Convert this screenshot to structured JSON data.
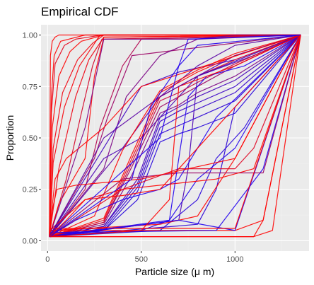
{
  "chart_data": {
    "type": "line",
    "title": "Empirical CDF",
    "xlabel": "Particle size (μ m)",
    "ylabel": "Proportion",
    "xlim": [
      -35,
      1395
    ],
    "ylim": [
      -0.05,
      1.05
    ],
    "x_ticks": [
      0,
      500,
      1000
    ],
    "y_ticks": [
      0.0,
      0.25,
      0.5,
      0.75,
      1.0
    ],
    "x_tick_labels": [
      "0",
      "500",
      "1000"
    ],
    "y_tick_labels": [
      "0.00",
      "0.25",
      "0.50",
      "0.75",
      "1.00"
    ],
    "grid": true,
    "legend": "none",
    "color_gradient": [
      "#2200cc",
      "#ff0000"
    ],
    "series": [
      {
        "color": "#ff0000",
        "x": [
          10,
          25,
          60,
          120,
          180,
          300,
          1350
        ],
        "y": [
          0.02,
          0.55,
          0.8,
          0.92,
          0.97,
          1.0,
          1.0
        ]
      },
      {
        "color": "#f2000d",
        "x": [
          10,
          30,
          80,
          160,
          240,
          300,
          1350
        ],
        "y": [
          0.02,
          0.45,
          0.72,
          0.88,
          0.96,
          1.0,
          1.0
        ]
      },
      {
        "color": "#e5001a",
        "x": [
          10,
          20,
          40,
          90,
          150,
          290,
          1350
        ],
        "y": [
          0.03,
          0.62,
          0.86,
          0.95,
          0.98,
          1.0,
          1.0
        ]
      },
      {
        "color": "#ee0011",
        "x": [
          10,
          60,
          150,
          220,
          300,
          1350
        ],
        "y": [
          0.02,
          0.35,
          0.7,
          0.88,
          0.99,
          1.0
        ]
      },
      {
        "color": "#d40026",
        "x": [
          10,
          100,
          180,
          240,
          290,
          1350
        ],
        "y": [
          0.02,
          0.3,
          0.62,
          0.85,
          0.98,
          1.0
        ]
      },
      {
        "color": "#ff0000",
        "x": [
          10,
          60,
          200,
          250,
          300,
          1350
        ],
        "y": [
          0.02,
          0.18,
          0.4,
          0.8,
          0.99,
          1.0
        ]
      },
      {
        "color": "#f70008",
        "x": [
          10,
          30,
          90,
          170,
          280,
          1350
        ],
        "y": [
          0.02,
          0.38,
          0.65,
          0.85,
          1.0,
          1.0
        ]
      },
      {
        "color": "#ff0000",
        "x": [
          10,
          20,
          35,
          70,
          200,
          1350
        ],
        "y": [
          0.02,
          0.7,
          0.9,
          0.97,
          1.0,
          1.0
        ]
      },
      {
        "color": "#b3004c",
        "x": [
          10,
          200,
          280,
          400,
          500,
          1350
        ],
        "y": [
          0.02,
          0.25,
          0.55,
          0.85,
          0.98,
          1.0
        ]
      },
      {
        "color": "#9b0064",
        "x": [
          10,
          250,
          320,
          450,
          1350
        ],
        "y": [
          0.02,
          0.4,
          0.6,
          0.9,
          1.0
        ]
      },
      {
        "color": "#7a0085",
        "x": [
          10,
          300,
          420,
          600,
          800,
          1350
        ],
        "y": [
          0.02,
          0.35,
          0.7,
          0.9,
          0.98,
          1.0
        ]
      },
      {
        "color": "#5a00a5",
        "x": [
          10,
          400,
          600,
          800,
          1000,
          1350
        ],
        "y": [
          0.02,
          0.45,
          0.7,
          0.85,
          0.95,
          1.0
        ]
      },
      {
        "color": "#3d00c2",
        "x": [
          10,
          500,
          700,
          1000,
          1350
        ],
        "y": [
          0.02,
          0.75,
          0.82,
          0.88,
          1.0
        ]
      },
      {
        "color": "#4a00b5",
        "x": [
          10,
          300,
          500,
          800,
          1100,
          1350
        ],
        "y": [
          0.02,
          0.4,
          0.5,
          0.8,
          0.9,
          1.0
        ]
      },
      {
        "color": "#2200dd",
        "x": [
          10,
          300,
          480,
          600,
          700,
          800,
          1000,
          1350
        ],
        "y": [
          0.02,
          0.05,
          0.2,
          0.48,
          0.52,
          0.55,
          0.62,
          1.0
        ]
      },
      {
        "color": "#2a00d5",
        "x": [
          10,
          300,
          480,
          600,
          700,
          800,
          1000,
          1350
        ],
        "y": [
          0.02,
          0.05,
          0.24,
          0.52,
          0.56,
          0.6,
          0.68,
          1.0
        ]
      },
      {
        "color": "#3300cc",
        "x": [
          10,
          300,
          480,
          600,
          700,
          800,
          1000,
          1350
        ],
        "y": [
          0.02,
          0.06,
          0.26,
          0.55,
          0.6,
          0.64,
          0.72,
          1.0
        ]
      },
      {
        "color": "#3800c7",
        "x": [
          10,
          300,
          480,
          600,
          700,
          800,
          1000,
          1350
        ],
        "y": [
          0.02,
          0.07,
          0.28,
          0.58,
          0.63,
          0.67,
          0.75,
          1.0
        ]
      },
      {
        "color": "#4400bb",
        "x": [
          10,
          300,
          480,
          600,
          700,
          800,
          1000,
          1350
        ],
        "y": [
          0.02,
          0.07,
          0.3,
          0.6,
          0.65,
          0.7,
          0.78,
          1.0
        ]
      },
      {
        "color": "#7a0085",
        "x": [
          10,
          300,
          450,
          600,
          700,
          800,
          1000,
          1350
        ],
        "y": [
          0.02,
          0.08,
          0.32,
          0.62,
          0.66,
          0.72,
          0.8,
          1.0
        ]
      },
      {
        "color": "#9e0061",
        "x": [
          10,
          300,
          450,
          600,
          700,
          800,
          1000,
          1350
        ],
        "y": [
          0.02,
          0.09,
          0.36,
          0.65,
          0.7,
          0.75,
          0.85,
          1.0
        ]
      },
      {
        "color": "#c7003a",
        "x": [
          10,
          300,
          450,
          600,
          700,
          800,
          1000,
          1350
        ],
        "y": [
          0.02,
          0.09,
          0.38,
          0.68,
          0.72,
          0.77,
          0.86,
          1.0
        ]
      },
      {
        "color": "#ea0017",
        "x": [
          10,
          300,
          450,
          600,
          700,
          800,
          1000,
          1350
        ],
        "y": [
          0.02,
          0.1,
          0.4,
          0.7,
          0.75,
          0.8,
          0.88,
          1.0
        ]
      },
      {
        "color": "#ff0000",
        "x": [
          10,
          300,
          450,
          600,
          700,
          800,
          1000,
          1350
        ],
        "y": [
          0.02,
          0.11,
          0.42,
          0.72,
          0.77,
          0.82,
          0.9,
          1.0
        ]
      },
      {
        "color": "#ff0000",
        "x": [
          10,
          250,
          400,
          600,
          700,
          800,
          1000,
          1350
        ],
        "y": [
          0.02,
          0.12,
          0.44,
          0.73,
          0.78,
          0.83,
          0.91,
          1.0
        ]
      },
      {
        "color": "#2200ee",
        "x": [
          10,
          500,
          650,
          800,
          1000,
          1350
        ],
        "y": [
          0.02,
          0.05,
          0.1,
          0.3,
          0.45,
          1.0
        ]
      },
      {
        "color": "#2600dd",
        "x": [
          10,
          600,
          800,
          900,
          1050,
          1350
        ],
        "y": [
          0.02,
          0.05,
          0.2,
          0.4,
          0.55,
          1.0
        ]
      },
      {
        "color": "#4a00b5",
        "x": [
          10,
          700,
          750,
          800,
          1350
        ],
        "y": [
          0.02,
          0.1,
          0.35,
          0.8,
          1.0
        ]
      },
      {
        "color": "#2a00d5",
        "x": [
          10,
          800,
          900,
          1000,
          1350
        ],
        "y": [
          0.02,
          0.08,
          0.25,
          0.65,
          1.0
        ]
      },
      {
        "color": "#ff0000",
        "x": [
          10,
          600,
          800,
          1000,
          1350
        ],
        "y": [
          0.05,
          0.08,
          0.12,
          0.4,
          1.0
        ]
      },
      {
        "color": "#e0001f",
        "x": [
          10,
          400,
          700,
          1000,
          1100,
          1350
        ],
        "y": [
          0.02,
          0.25,
          0.35,
          0.35,
          0.45,
          1.0
        ]
      },
      {
        "color": "#ff0000",
        "x": [
          10,
          1100,
          1150,
          1350
        ],
        "y": [
          0.02,
          0.02,
          0.1,
          1.0
        ]
      },
      {
        "color": "#ff0000",
        "x": [
          10,
          1000,
          1150,
          1350
        ],
        "y": [
          0.05,
          0.05,
          0.1,
          1.0
        ]
      },
      {
        "color": "#2200ee",
        "x": [
          10,
          900,
          1150,
          1350
        ],
        "y": [
          0.04,
          0.05,
          0.35,
          1.0
        ]
      },
      {
        "color": "#9b0064",
        "x": [
          10,
          400,
          700,
          1000,
          1150,
          1350
        ],
        "y": [
          0.02,
          0.3,
          0.33,
          0.33,
          0.33,
          1.0
        ]
      },
      {
        "color": "#ff0000",
        "x": [
          10,
          200,
          400,
          700,
          900,
          1100,
          1350
        ],
        "y": [
          0.05,
          0.2,
          0.25,
          0.28,
          0.3,
          0.35,
          1.0
        ]
      },
      {
        "color": "#2200ee",
        "x": [
          10,
          150,
          400,
          600,
          700,
          900,
          1350
        ],
        "y": [
          0.02,
          0.1,
          0.2,
          0.25,
          0.3,
          0.6,
          1.0
        ]
      },
      {
        "color": "#ff0000",
        "x": [
          10,
          1100,
          1200,
          1350
        ],
        "y": [
          0.02,
          0.02,
          0.05,
          1.0
        ]
      },
      {
        "color": "#2200ee",
        "x": [
          10,
          700,
          1000,
          1350
        ],
        "y": [
          0.02,
          0.1,
          0.05,
          1.0
        ]
      },
      {
        "color": "#ff0000",
        "x": [
          10,
          700,
          1000,
          1350
        ],
        "y": [
          0.06,
          0.06,
          0.06,
          1.0
        ]
      },
      {
        "color": "#2200ee",
        "x": [
          10,
          650,
          750,
          850,
          1050,
          1350
        ],
        "y": [
          0.02,
          0.1,
          0.7,
          0.8,
          0.85,
          1.0
        ]
      },
      {
        "color": "#ff0000",
        "x": [
          10,
          500,
          650,
          700,
          1000,
          1350
        ],
        "y": [
          0.02,
          0.05,
          0.2,
          0.75,
          0.85,
          1.0
        ]
      },
      {
        "color": "#5a00a5",
        "x": [
          10,
          300,
          600,
          800,
          1000,
          1350
        ],
        "y": [
          0.02,
          0.5,
          0.7,
          0.8,
          0.9,
          1.0
        ]
      },
      {
        "color": "#ff0000",
        "x": [
          10,
          40,
          100,
          300,
          500,
          1350
        ],
        "y": [
          0.04,
          0.3,
          0.4,
          0.55,
          0.75,
          1.0
        ]
      },
      {
        "color": "#ff0000",
        "x": [
          10,
          25,
          50,
          150,
          500,
          1000,
          1350
        ],
        "y": [
          0.02,
          0.15,
          0.25,
          0.27,
          0.3,
          0.4,
          1.0
        ]
      },
      {
        "color": "#ff0000",
        "x": [
          10,
          15,
          25,
          40,
          60,
          100,
          1350
        ],
        "y": [
          0.02,
          0.9,
          0.97,
          0.99,
          1.0,
          1.0,
          1.0
        ]
      },
      {
        "color": "#7a0085",
        "x": [
          10,
          200,
          300,
          800,
          1000,
          1350
        ],
        "y": [
          0.02,
          0.55,
          0.98,
          0.98,
          1.0,
          1.0
        ]
      },
      {
        "color": "#2200ee",
        "x": [
          10,
          600,
          700,
          750,
          1350
        ],
        "y": [
          0.02,
          0.5,
          0.85,
          0.98,
          1.0
        ]
      },
      {
        "color": "#2200ee",
        "x": [
          10,
          450,
          550,
          700,
          800,
          1350
        ],
        "y": [
          0.02,
          0.3,
          0.65,
          0.85,
          0.95,
          1.0
        ]
      },
      {
        "color": "#ff0000",
        "x": [
          10,
          100,
          200,
          400,
          600,
          1350
        ],
        "y": [
          0.02,
          0.1,
          0.2,
          0.22,
          0.25,
          1.0
        ]
      }
    ]
  }
}
